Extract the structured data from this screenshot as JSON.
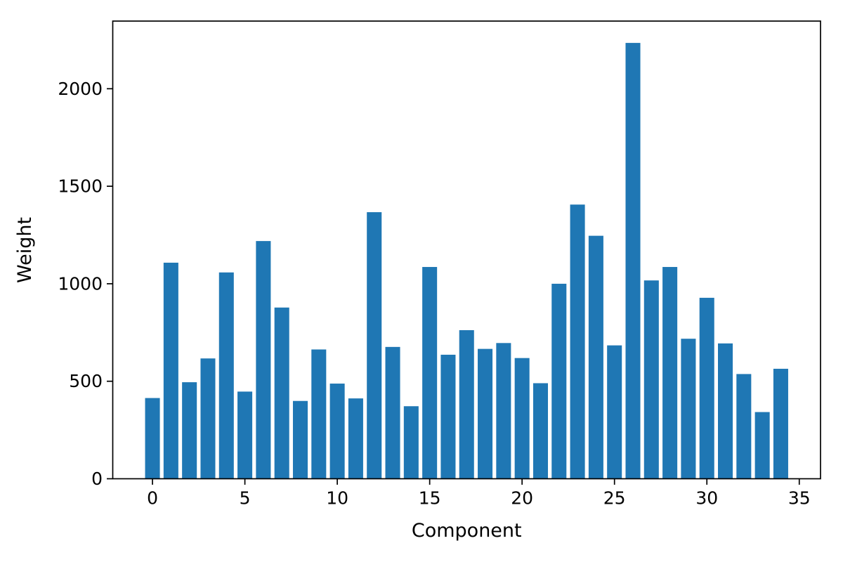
{
  "figure": {
    "background": "#ffffff",
    "bar_color": "#1f77b4",
    "axis_color": "#000000"
  },
  "chart_data": {
    "type": "bar",
    "title": "",
    "xlabel": "Component",
    "ylabel": "Weight",
    "x": [
      0,
      1,
      2,
      3,
      4,
      5,
      6,
      7,
      8,
      9,
      10,
      11,
      12,
      13,
      14,
      15,
      16,
      17,
      18,
      19,
      20,
      21,
      22,
      23,
      24,
      25,
      26,
      27,
      28,
      29,
      30,
      31,
      32,
      33,
      34
    ],
    "values": [
      414,
      1108,
      495,
      617,
      1058,
      447,
      1219,
      878,
      399,
      663,
      488,
      412,
      1367,
      676,
      372,
      1086,
      636,
      762,
      666,
      696,
      619,
      490,
      1000,
      1406,
      1246,
      684,
      2235,
      1017,
      1086,
      718,
      928,
      694,
      537,
      342,
      564
    ],
    "bar_width_fraction": 0.8,
    "xlim": [
      -2.15,
      36.15
    ],
    "ylim": [
      0,
      2347
    ],
    "xticks": [
      0,
      5,
      10,
      15,
      20,
      25,
      30,
      35
    ],
    "yticks": [
      0,
      500,
      1000,
      1500,
      2000
    ],
    "grid": false,
    "legend": null
  }
}
